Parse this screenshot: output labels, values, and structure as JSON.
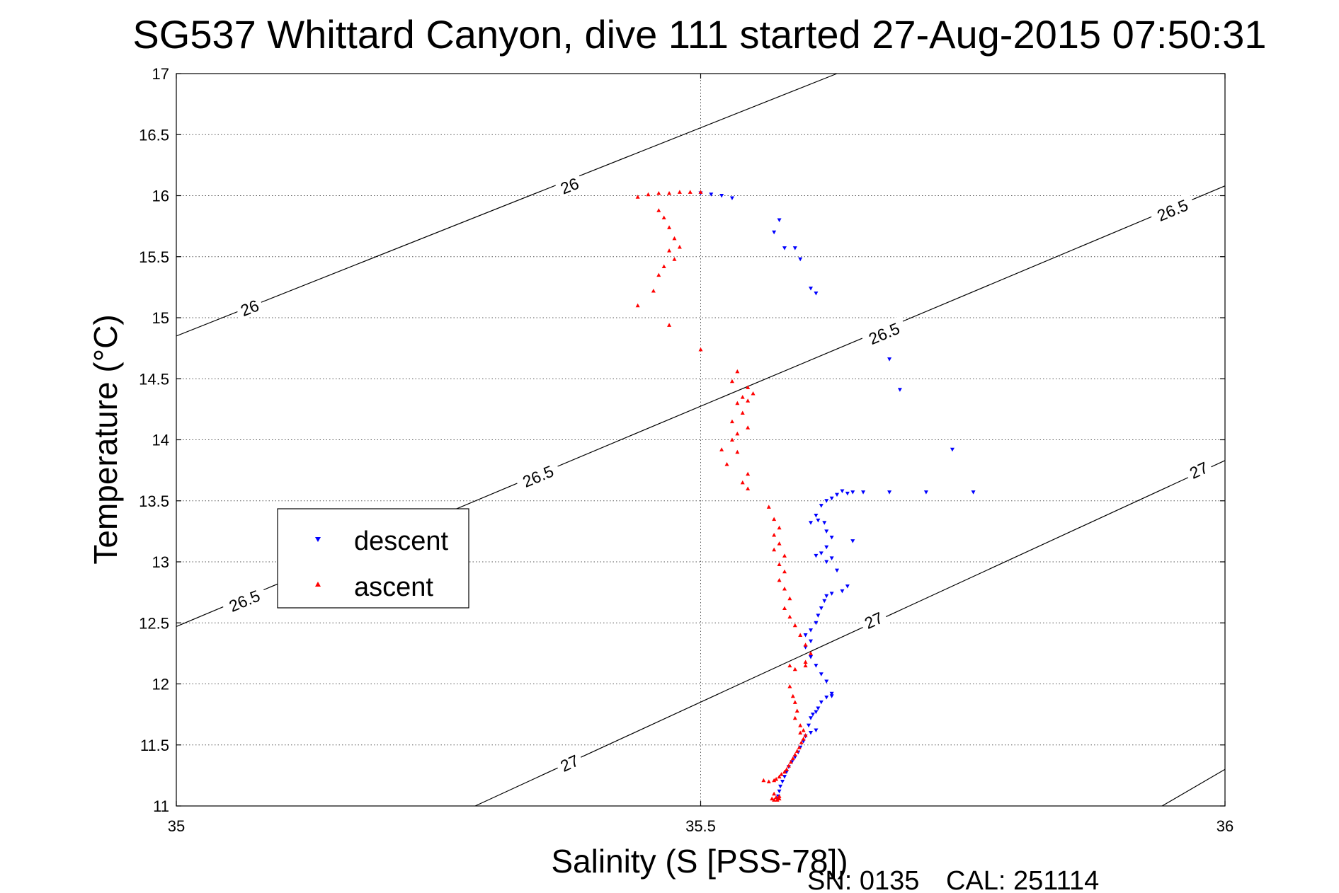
{
  "chart_data": {
    "type": "scatter",
    "title": "SG537 Whittard Canyon, dive 111 started 27-Aug-2015 07:50:31",
    "xlabel": "Salinity (S [PSS-78])",
    "ylabel": "Temperature (°C)",
    "xlim": [
      35,
      36
    ],
    "ylim": [
      11,
      17
    ],
    "x_ticks": [
      "35",
      "35.5",
      "36"
    ],
    "y_ticks": [
      "11",
      "11.5",
      "12",
      "12.5",
      "13",
      "13.5",
      "14",
      "14.5",
      "15",
      "15.5",
      "16",
      "16.5",
      "17"
    ],
    "grid": true,
    "legend_position": "middle-left",
    "isopycnals": [
      {
        "label": "26",
        "points": [
          [
            35,
            14.85
          ],
          [
            35.63,
            17
          ]
        ],
        "labels_at": [
          [
            35.07,
            15.08
          ],
          [
            35.375,
            16.08
          ]
        ]
      },
      {
        "label": "26.5",
        "points": [
          [
            35,
            12.47
          ],
          [
            36,
            16.08
          ]
        ],
        "labels_at": [
          [
            35.065,
            12.68
          ],
          [
            35.345,
            13.7
          ],
          [
            35.675,
            14.87
          ],
          [
            35.95,
            15.88
          ]
        ]
      },
      {
        "label": "27",
        "points": [
          [
            35.285,
            11
          ],
          [
            36,
            13.83
          ]
        ],
        "labels_at": [
          [
            35.375,
            11.35
          ],
          [
            35.665,
            12.52
          ],
          [
            35.975,
            13.75
          ]
        ]
      },
      {
        "label": "",
        "points": [
          [
            35.94,
            11
          ],
          [
            36,
            11.3
          ]
        ],
        "labels_at": []
      }
    ],
    "series": [
      {
        "name": "descent",
        "color": "#0000ff",
        "marker": "triangle-down",
        "points": [
          [
            35.5,
            16.02
          ],
          [
            35.51,
            16.01
          ],
          [
            35.52,
            16.0
          ],
          [
            35.53,
            15.98
          ],
          [
            35.575,
            15.8
          ],
          [
            35.57,
            15.7
          ],
          [
            35.58,
            15.57
          ],
          [
            35.59,
            15.57
          ],
          [
            35.595,
            15.48
          ],
          [
            35.605,
            15.24
          ],
          [
            35.61,
            15.2
          ],
          [
            35.68,
            14.66
          ],
          [
            35.69,
            14.41
          ],
          [
            35.74,
            13.92
          ],
          [
            35.76,
            13.57
          ],
          [
            35.715,
            13.57
          ],
          [
            35.68,
            13.57
          ],
          [
            35.655,
            13.57
          ],
          [
            35.645,
            13.57
          ],
          [
            35.64,
            13.56
          ],
          [
            35.635,
            13.58
          ],
          [
            35.63,
            13.55
          ],
          [
            35.625,
            13.52
          ],
          [
            35.62,
            13.5
          ],
          [
            35.615,
            13.46
          ],
          [
            35.61,
            13.38
          ],
          [
            35.612,
            13.34
          ],
          [
            35.618,
            13.32
          ],
          [
            35.605,
            13.32
          ],
          [
            35.62,
            13.25
          ],
          [
            35.625,
            13.2
          ],
          [
            35.645,
            13.17
          ],
          [
            35.62,
            13.12
          ],
          [
            35.615,
            13.07
          ],
          [
            35.61,
            13.05
          ],
          [
            35.625,
            13.03
          ],
          [
            35.62,
            13.0
          ],
          [
            35.63,
            12.93
          ],
          [
            35.64,
            12.8
          ],
          [
            35.635,
            12.76
          ],
          [
            35.625,
            12.74
          ],
          [
            35.62,
            12.72
          ],
          [
            35.618,
            12.68
          ],
          [
            35.615,
            12.62
          ],
          [
            35.612,
            12.56
          ],
          [
            35.61,
            12.5
          ],
          [
            35.605,
            12.44
          ],
          [
            35.6,
            12.4
          ],
          [
            35.605,
            12.35
          ],
          [
            35.6,
            12.3
          ],
          [
            35.605,
            12.22
          ],
          [
            35.61,
            12.15
          ],
          [
            35.615,
            12.08
          ],
          [
            35.62,
            12.02
          ],
          [
            35.625,
            11.92
          ],
          [
            35.625,
            11.9
          ],
          [
            35.62,
            11.89
          ],
          [
            35.615,
            11.85
          ],
          [
            35.612,
            11.8
          ],
          [
            35.61,
            11.77
          ],
          [
            35.607,
            11.75
          ],
          [
            35.605,
            11.72
          ],
          [
            35.603,
            11.66
          ],
          [
            35.61,
            11.62
          ],
          [
            35.605,
            11.6
          ],
          [
            35.6,
            11.57
          ],
          [
            35.598,
            11.53
          ],
          [
            35.595,
            11.48
          ],
          [
            35.593,
            11.44
          ],
          [
            35.59,
            11.4
          ],
          [
            35.587,
            11.36
          ],
          [
            35.584,
            11.32
          ],
          [
            35.582,
            11.28
          ],
          [
            35.58,
            11.24
          ],
          [
            35.578,
            11.2
          ],
          [
            35.576,
            11.16
          ],
          [
            35.575,
            11.12
          ],
          [
            35.574,
            11.08
          ],
          [
            35.573,
            11.06
          ]
        ]
      },
      {
        "name": "ascent",
        "color": "#ff0000",
        "marker": "triangle-up",
        "points": [
          [
            35.44,
            15.99
          ],
          [
            35.45,
            16.01
          ],
          [
            35.46,
            16.02
          ],
          [
            35.47,
            16.02
          ],
          [
            35.48,
            16.03
          ],
          [
            35.49,
            16.03
          ],
          [
            35.5,
            16.03
          ],
          [
            35.46,
            15.88
          ],
          [
            35.465,
            15.82
          ],
          [
            35.47,
            15.74
          ],
          [
            35.475,
            15.65
          ],
          [
            35.48,
            15.58
          ],
          [
            35.47,
            15.55
          ],
          [
            35.475,
            15.48
          ],
          [
            35.465,
            15.42
          ],
          [
            35.46,
            15.35
          ],
          [
            35.455,
            15.22
          ],
          [
            35.44,
            15.1
          ],
          [
            35.47,
            14.94
          ],
          [
            35.5,
            14.74
          ],
          [
            35.535,
            14.56
          ],
          [
            35.53,
            14.48
          ],
          [
            35.545,
            14.43
          ],
          [
            35.55,
            14.38
          ],
          [
            35.54,
            14.35
          ],
          [
            35.545,
            14.32
          ],
          [
            35.535,
            14.3
          ],
          [
            35.54,
            14.22
          ],
          [
            35.53,
            14.15
          ],
          [
            35.545,
            14.1
          ],
          [
            35.535,
            14.05
          ],
          [
            35.53,
            14.0
          ],
          [
            35.52,
            13.92
          ],
          [
            35.535,
            13.9
          ],
          [
            35.525,
            13.8
          ],
          [
            35.545,
            13.72
          ],
          [
            35.54,
            13.65
          ],
          [
            35.545,
            13.6
          ],
          [
            35.565,
            13.45
          ],
          [
            35.57,
            13.35
          ],
          [
            35.575,
            13.28
          ],
          [
            35.57,
            13.22
          ],
          [
            35.575,
            13.15
          ],
          [
            35.57,
            13.1
          ],
          [
            35.58,
            13.05
          ],
          [
            35.575,
            12.98
          ],
          [
            35.58,
            12.92
          ],
          [
            35.575,
            12.85
          ],
          [
            35.58,
            12.78
          ],
          [
            35.585,
            12.7
          ],
          [
            35.58,
            12.62
          ],
          [
            35.585,
            12.55
          ],
          [
            35.59,
            12.48
          ],
          [
            35.595,
            12.4
          ],
          [
            35.6,
            12.32
          ],
          [
            35.605,
            12.25
          ],
          [
            35.6,
            12.18
          ],
          [
            35.585,
            12.15
          ],
          [
            35.59,
            12.12
          ],
          [
            35.6,
            12.15
          ],
          [
            35.585,
            11.98
          ],
          [
            35.588,
            11.9
          ],
          [
            35.59,
            11.85
          ],
          [
            35.592,
            11.78
          ],
          [
            35.59,
            11.72
          ],
          [
            35.595,
            11.66
          ],
          [
            35.598,
            11.62
          ],
          [
            35.595,
            11.6
          ],
          [
            35.6,
            11.58
          ],
          [
            35.598,
            11.55
          ],
          [
            35.596,
            11.52
          ],
          [
            35.594,
            11.48
          ],
          [
            35.592,
            11.45
          ],
          [
            35.59,
            11.42
          ],
          [
            35.588,
            11.39
          ],
          [
            35.586,
            11.36
          ],
          [
            35.584,
            11.33
          ],
          [
            35.582,
            11.3
          ],
          [
            35.58,
            11.28
          ],
          [
            35.577,
            11.26
          ],
          [
            35.575,
            11.24
          ],
          [
            35.572,
            11.22
          ],
          [
            35.57,
            11.21
          ],
          [
            35.565,
            11.2
          ],
          [
            35.56,
            11.21
          ],
          [
            35.57,
            11.1
          ],
          [
            35.575,
            11.08
          ],
          [
            35.572,
            11.07
          ],
          [
            35.568,
            11.06
          ],
          [
            35.57,
            11.05
          ],
          [
            35.575,
            11.06
          ],
          [
            35.573,
            11.05
          ]
        ]
      }
    ]
  },
  "legend": {
    "items": [
      {
        "label": "descent",
        "color": "#0000ff",
        "marker": "triangle-down"
      },
      {
        "label": "ascent",
        "color": "#ff0000",
        "marker": "triangle-up"
      }
    ]
  },
  "footer": {
    "serial": "SN: 0135",
    "calibration": "CAL: 251114"
  }
}
